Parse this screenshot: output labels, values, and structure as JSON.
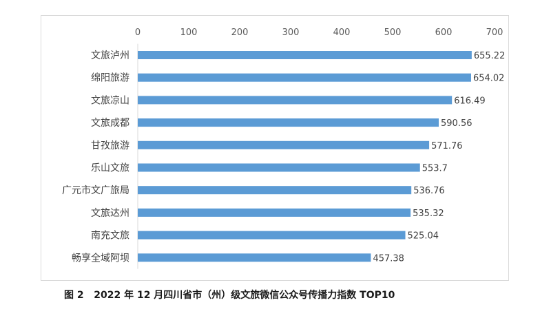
{
  "caption": "图 2   2022 年 12 月四川省市（州）级文旅微信公众号传播力指数 TOP10",
  "chart_data": {
    "type": "bar",
    "orientation": "horizontal",
    "title": "",
    "xlabel": "",
    "ylabel": "",
    "xlim": [
      0,
      700
    ],
    "x_ticks": [
      0,
      100,
      200,
      300,
      400,
      500,
      600,
      700
    ],
    "axis_position": "top",
    "grid": false,
    "bar_color": "#5b9bd5",
    "categories": [
      "文旅泸州",
      "绵阳旅游",
      "文旅凉山",
      "文旅成都",
      "甘孜旅游",
      "乐山文旅",
      "广元市文广旅局",
      "文旅达州",
      "南充文旅",
      "畅享全域阿坝"
    ],
    "values": [
      655.22,
      654.02,
      616.49,
      590.56,
      571.76,
      553.7,
      536.76,
      535.32,
      525.04,
      457.38
    ],
    "value_labels": [
      "655.22",
      "654.02",
      "616.49",
      "590.56",
      "571.76",
      "553.7",
      "536.76",
      "535.32",
      "525.04",
      "457.38"
    ]
  }
}
